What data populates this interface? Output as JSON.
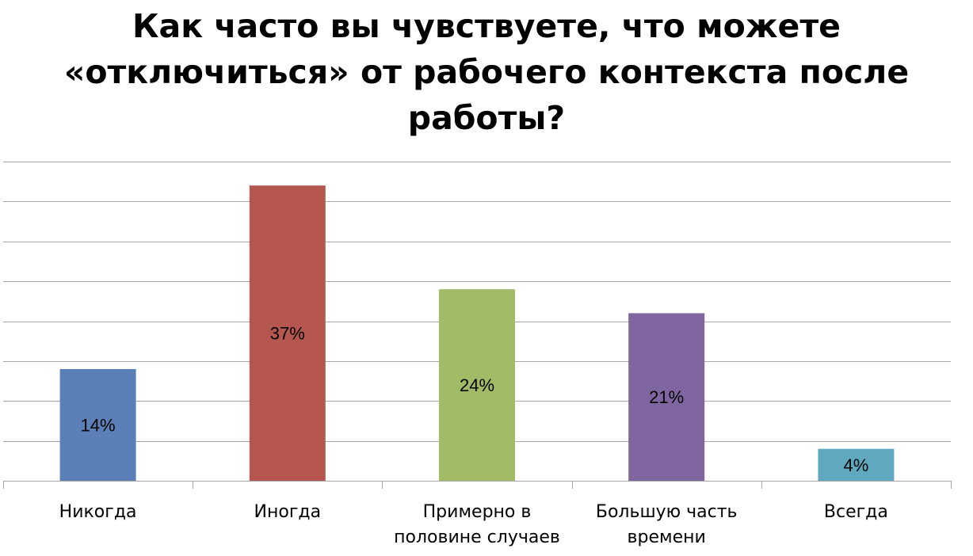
{
  "chart_data": {
    "type": "bar",
    "title_lines": [
      "Как часто вы чувствуете, что можете",
      "«отключиться» от рабочего контекста после",
      "работы?"
    ],
    "categories": [
      "Никогда",
      "Иногда",
      "Примерно в половине случаев",
      "Большую часть времени",
      "Всегда"
    ],
    "category_lines": [
      [
        "Никогда"
      ],
      [
        "Иногда"
      ],
      [
        "Примерно в",
        "половине случаев"
      ],
      [
        "Большую часть",
        "времени"
      ],
      [
        "Всегда"
      ]
    ],
    "values": [
      14,
      37,
      24,
      21,
      4
    ],
    "data_labels": [
      "14%",
      "37%",
      "24%",
      "21%",
      "4%"
    ],
    "colors": [
      "#5b80b8",
      "#b5574f",
      "#a1bb66",
      "#7f66a0",
      "#5fa8c0"
    ],
    "ylim": [
      0,
      40
    ],
    "grid": true,
    "legend": "none",
    "xlabel": "",
    "ylabel": ""
  }
}
